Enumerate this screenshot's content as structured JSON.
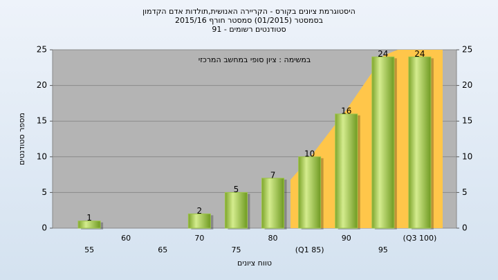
{
  "chart_data": {
    "type": "bar",
    "title": "היסטוגרמת ציונים בקורס - הקריירה האנושית,תולדות אדם הקדמון",
    "subtitle": [
      "בסמסטר  (01/2015)  סמסטר חורף 2015/16",
      "סטודנטים רשומים - 91"
    ],
    "annotation": "במשימה : ציון סופי במחשב המרכזי",
    "x_label": "טווח ציונים",
    "y_label": "מספר סטודנטים",
    "categories": [
      "55",
      "60",
      "65",
      "70",
      "75",
      "80",
      "(Q1 85)",
      "90",
      "95",
      "(Q3 100)"
    ],
    "values": [
      1,
      0,
      0,
      2,
      5,
      7,
      10,
      16,
      24,
      24
    ],
    "color": "#9cc447",
    "ylim": [
      0,
      25
    ],
    "yticks": [
      0,
      5,
      10,
      15,
      20,
      25
    ],
    "y2lim": [
      0,
      25
    ],
    "y2ticks": [
      0,
      5,
      10,
      15,
      20,
      25
    ],
    "grid": true
  }
}
